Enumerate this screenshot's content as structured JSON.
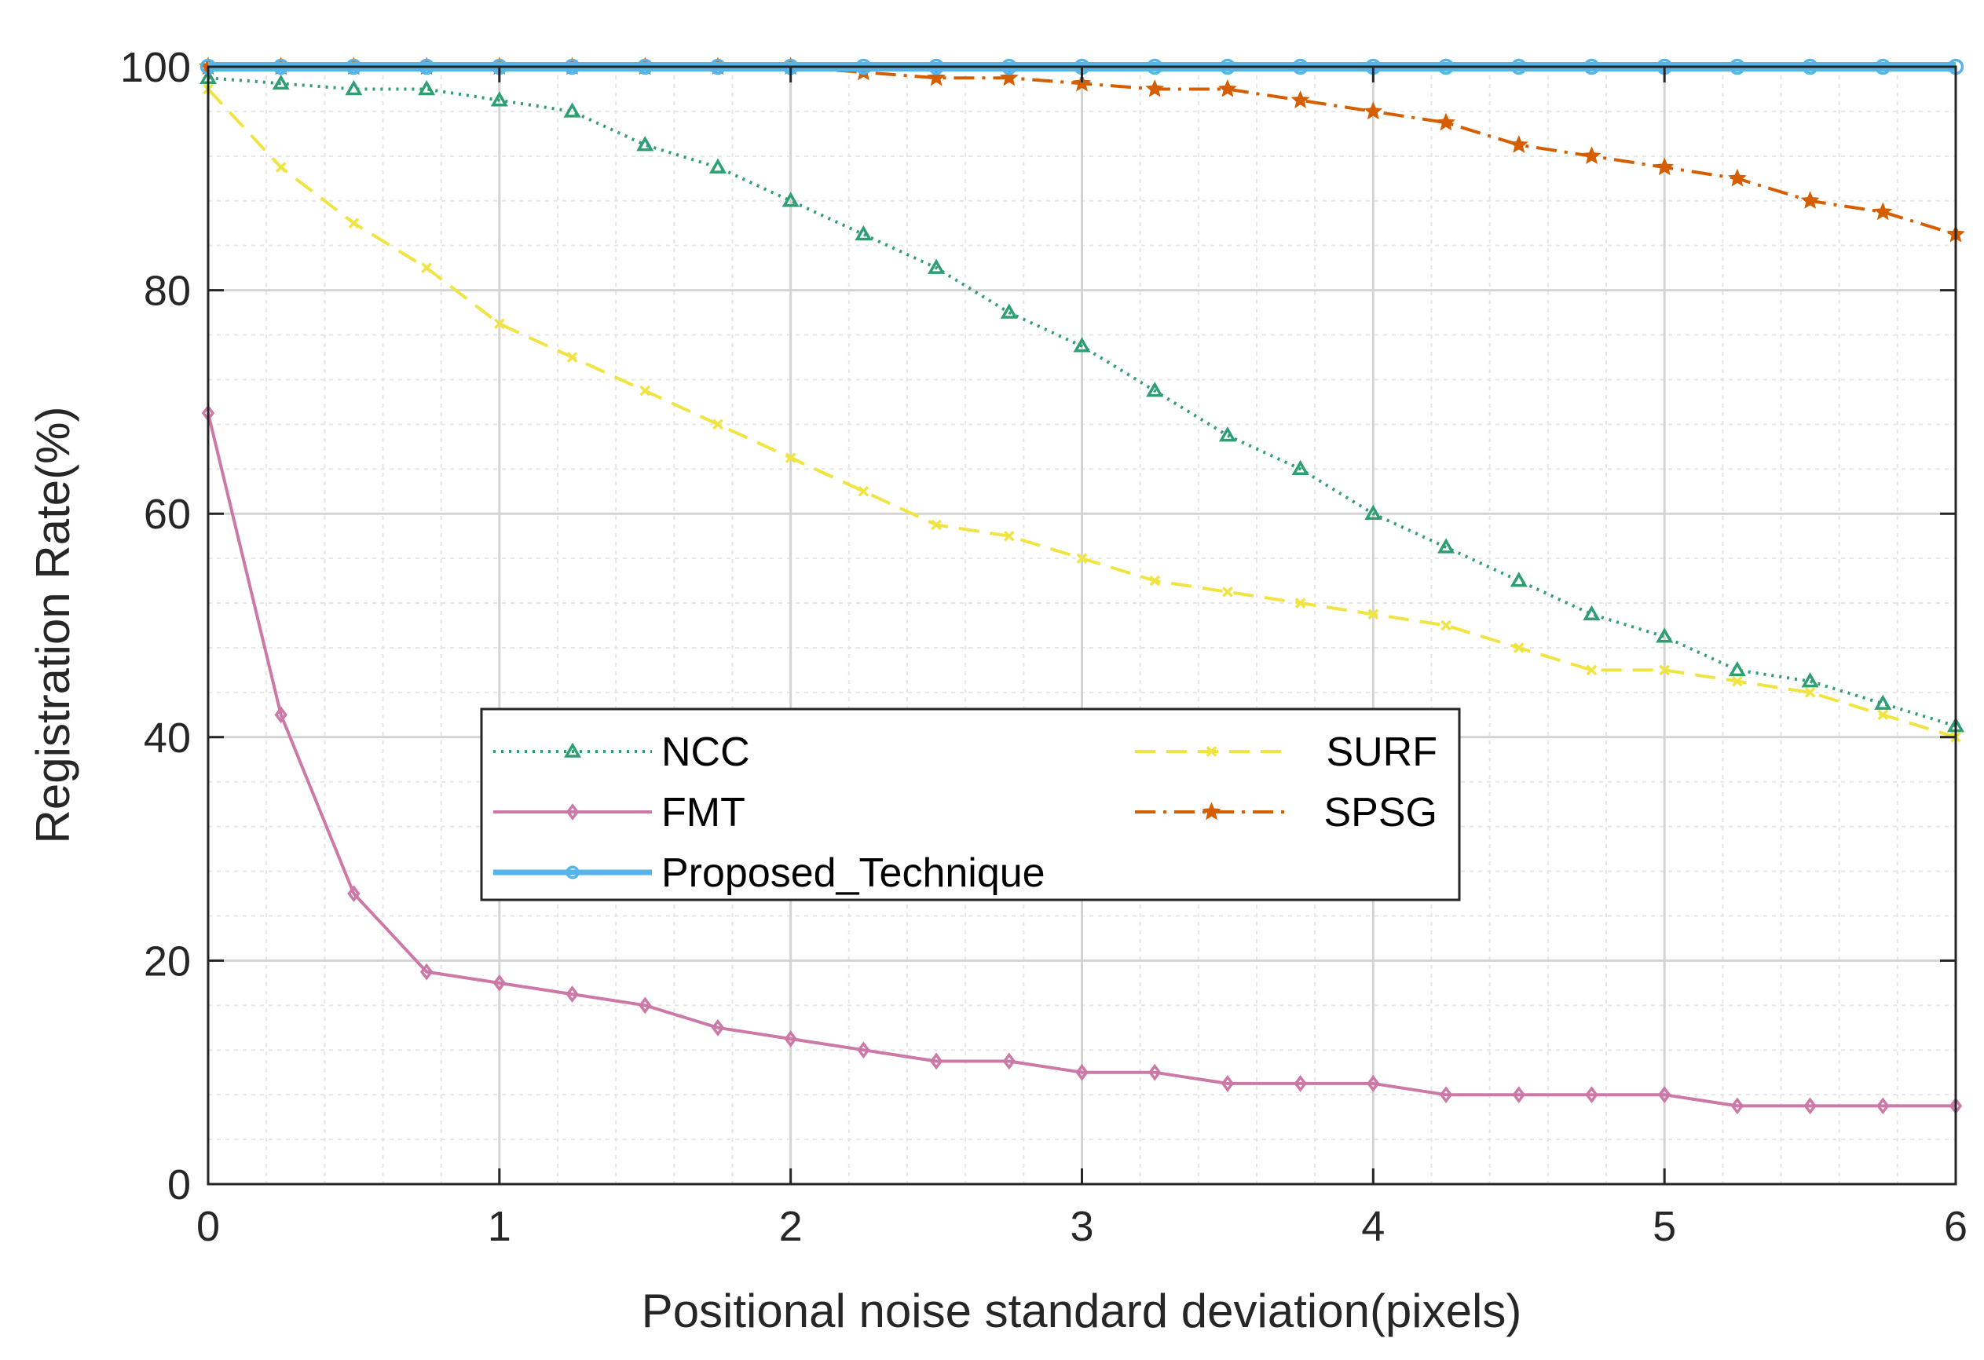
{
  "chart_data": {
    "type": "line",
    "title": "",
    "xlabel": "Positional noise standard deviation(pixels)",
    "ylabel": "Registration Rate(%)",
    "xlim": [
      0,
      6
    ],
    "ylim": [
      0,
      100
    ],
    "xticks": [
      "0",
      "1",
      "2",
      "3",
      "4",
      "5",
      "6"
    ],
    "yticks": [
      "0",
      "20",
      "40",
      "60",
      "80",
      "100"
    ],
    "grid": true,
    "legend_position": "center-left",
    "x": [
      0,
      0.25,
      0.5,
      0.75,
      1,
      1.25,
      1.5,
      1.75,
      2,
      2.25,
      2.5,
      2.75,
      3,
      3.25,
      3.5,
      3.75,
      4,
      4.25,
      4.5,
      4.75,
      5,
      5.25,
      5.5,
      5.75,
      6
    ],
    "series": [
      {
        "name": "NCC",
        "color": "#2e9e73",
        "linestyle": "dotted",
        "marker": "triangle",
        "values": [
          99,
          98.5,
          98,
          98,
          97,
          96,
          93,
          91,
          88,
          85,
          82,
          78,
          75,
          71,
          67,
          64,
          60,
          57,
          54,
          51,
          49,
          46,
          45,
          43,
          41
        ]
      },
      {
        "name": "FMT",
        "color": "#cc79a7",
        "linestyle": "solid",
        "marker": "diamond",
        "values": [
          69,
          42,
          26,
          19,
          18,
          17,
          16,
          14,
          13,
          12,
          11,
          11,
          10,
          10,
          9,
          9,
          9,
          8,
          8,
          8,
          8,
          7,
          7,
          7,
          7
        ]
      },
      {
        "name": "Proposed_Technique",
        "color": "#56b4e9",
        "linestyle": "solid",
        "marker": "circle",
        "values": [
          100,
          100,
          100,
          100,
          100,
          100,
          100,
          100,
          100,
          100,
          100,
          100,
          100,
          100,
          100,
          100,
          100,
          100,
          100,
          100,
          100,
          100,
          100,
          100,
          100
        ]
      },
      {
        "name": "SURF",
        "color": "#f0e442",
        "linestyle": "dashed",
        "marker": "x",
        "values": [
          98,
          91,
          86,
          82,
          77,
          74,
          71,
          68,
          65,
          62,
          59,
          58,
          56,
          54,
          53,
          52,
          51,
          50,
          48,
          46,
          46,
          45,
          44,
          42,
          40
        ]
      },
      {
        "name": "SPSG",
        "color": "#d55e00",
        "linestyle": "dashdot",
        "marker": "star",
        "values": [
          100,
          100,
          100,
          100,
          100,
          100,
          100,
          100,
          100,
          99.5,
          99,
          99,
          98.5,
          98,
          98,
          97,
          96,
          95,
          93,
          92,
          91,
          90,
          88,
          87,
          85
        ]
      }
    ]
  }
}
